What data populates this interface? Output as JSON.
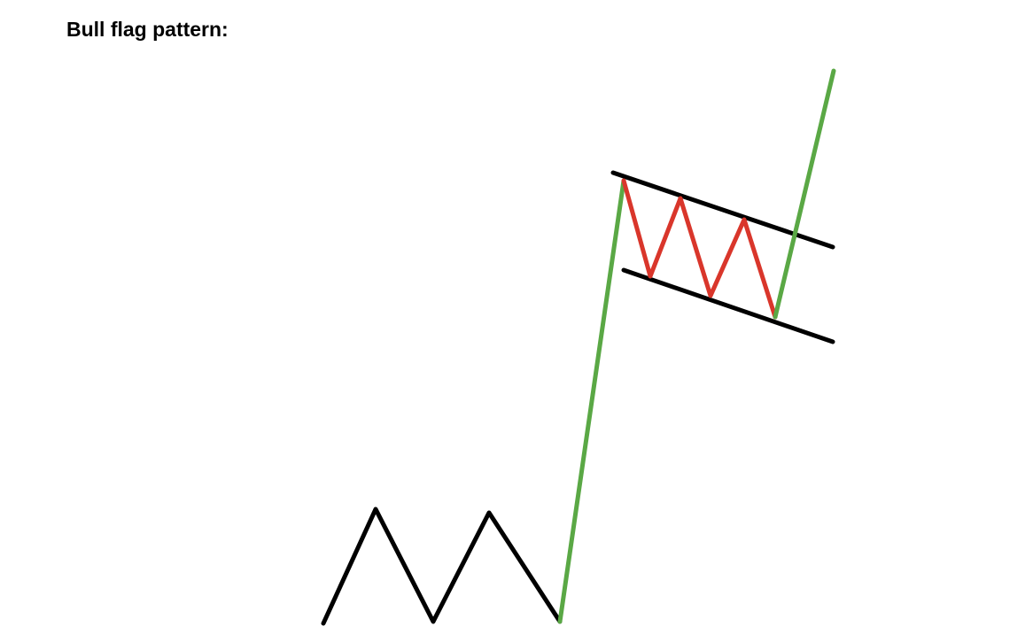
{
  "title": "Bull flag pattern:",
  "colors": {
    "prior_trend": "#000000",
    "flagpole": "#5aa845",
    "flag_pullback": "#d9362b",
    "channel_lines": "#000000",
    "breakout": "#5aa845",
    "background": "#ffffff"
  }
}
